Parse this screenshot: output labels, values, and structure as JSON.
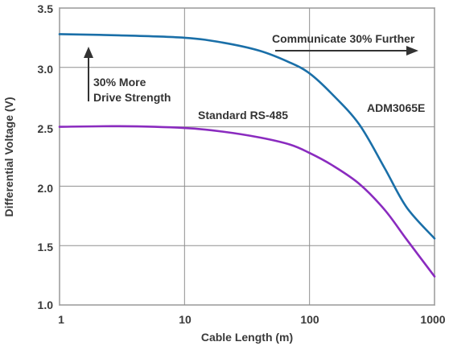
{
  "chart_data": {
    "type": "line",
    "xlabel": "Cable Length (m)",
    "ylabel": "Differential Voltage (V)",
    "x_scale": "log",
    "xlim": [
      1,
      1000
    ],
    "ylim": [
      1.0,
      3.5
    ],
    "x_ticks": [
      "1",
      "10",
      "100",
      "1000"
    ],
    "y_ticks": [
      "1.0",
      "1.5",
      "2.0",
      "2.5",
      "3.0",
      "3.5"
    ],
    "grid": true,
    "series": [
      {
        "name": "ADM3065E",
        "color": "#1a6fa8",
        "points": [
          [
            1,
            3.28
          ],
          [
            3,
            3.27
          ],
          [
            10,
            3.25
          ],
          [
            20,
            3.21
          ],
          [
            40,
            3.14
          ],
          [
            70,
            3.04
          ],
          [
            100,
            2.95
          ],
          [
            150,
            2.78
          ],
          [
            250,
            2.52
          ],
          [
            400,
            2.15
          ],
          [
            600,
            1.82
          ],
          [
            1000,
            1.56
          ]
        ]
      },
      {
        "name": "Standard RS-485",
        "color": "#8a2bbf",
        "points": [
          [
            1,
            2.5
          ],
          [
            3,
            2.505
          ],
          [
            10,
            2.49
          ],
          [
            20,
            2.46
          ],
          [
            40,
            2.41
          ],
          [
            70,
            2.35
          ],
          [
            100,
            2.28
          ],
          [
            150,
            2.18
          ],
          [
            250,
            2.02
          ],
          [
            400,
            1.8
          ],
          [
            600,
            1.55
          ],
          [
            1000,
            1.24
          ]
        ]
      }
    ],
    "annotations": {
      "further": "Communicate 30% Further",
      "drive_line1": "30% More",
      "drive_line2": "Drive Strength"
    }
  }
}
